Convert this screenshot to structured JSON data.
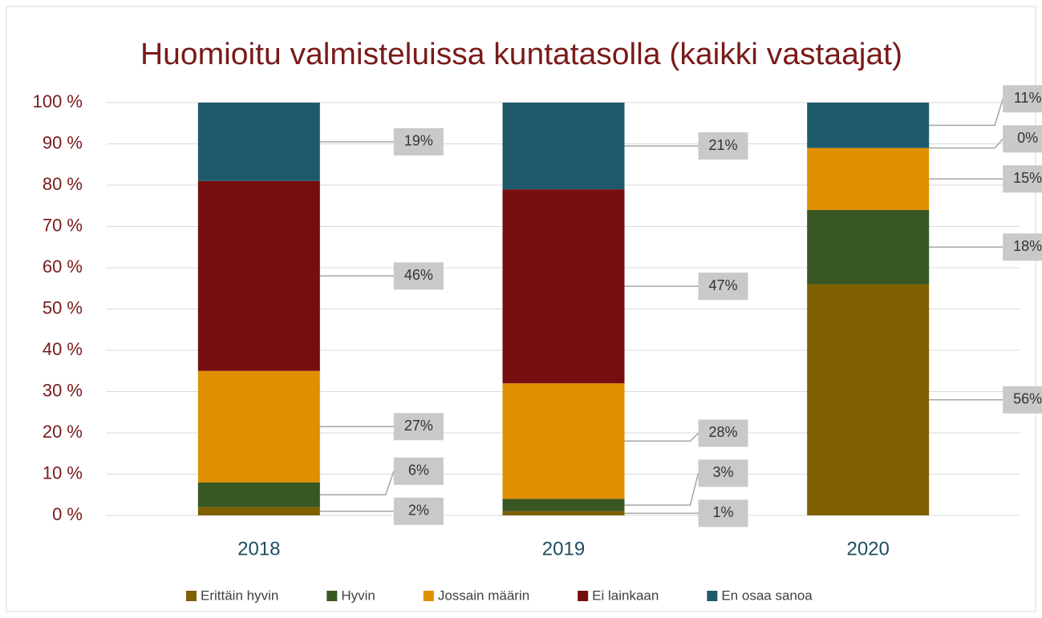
{
  "chart_data": {
    "type": "stacked_bar",
    "title": "Huomioitu valmisteluissa kuntatasolla (kaikki vastaajat)",
    "categories": [
      "2018",
      "2019",
      "2020"
    ],
    "series": [
      {
        "name": "Erittäin hyvin",
        "color": "#7f6000",
        "values": [
          2,
          1,
          56
        ],
        "value_labels": [
          "2%",
          "1%",
          "56%"
        ]
      },
      {
        "name": "Hyvin",
        "color": "#385723",
        "values": [
          6,
          3,
          18
        ],
        "value_labels": [
          "6%",
          "3%",
          "18%"
        ]
      },
      {
        "name": "Jossain määrin",
        "color": "#e08f00",
        "values": [
          27,
          28,
          15
        ],
        "value_labels": [
          "27%",
          "28%",
          "15%"
        ]
      },
      {
        "name": "Ei lainkaan",
        "color": "#760e0f",
        "values": [
          46,
          47,
          0
        ],
        "value_labels": [
          "46%",
          "47%",
          "0%"
        ]
      },
      {
        "name": "En osaa sanoa",
        "color": "#1f5a6c",
        "values": [
          19,
          21,
          11
        ],
        "value_labels": [
          "19%",
          "21%",
          "11%"
        ]
      }
    ],
    "ylim": [
      0,
      100
    ],
    "yticks": [
      {
        "value": 0,
        "label": "0 %"
      },
      {
        "value": 10,
        "label": "10 %"
      },
      {
        "value": 20,
        "label": "20 %"
      },
      {
        "value": 30,
        "label": "30 %"
      },
      {
        "value": 40,
        "label": "40 %"
      },
      {
        "value": 50,
        "label": "50 %"
      },
      {
        "value": 60,
        "label": "60 %"
      },
      {
        "value": 70,
        "label": "70 %"
      },
      {
        "value": 80,
        "label": "80 %"
      },
      {
        "value": 90,
        "label": "90 %"
      },
      {
        "value": 100,
        "label": "100 %"
      }
    ],
    "grid": true,
    "legend": "bottom"
  }
}
